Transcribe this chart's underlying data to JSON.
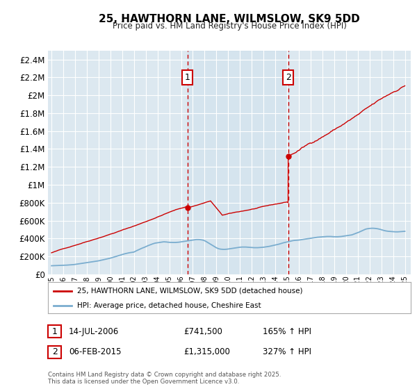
{
  "title": "25, HAWTHORN LANE, WILMSLOW, SK9 5DD",
  "subtitle": "Price paid vs. HM Land Registry's House Price Index (HPI)",
  "legend_line1": "25, HAWTHORN LANE, WILMSLOW, SK9 5DD (detached house)",
  "legend_line2": "HPI: Average price, detached house, Cheshire East",
  "sale1_date": "14-JUL-2006",
  "sale1_price": "£741,500",
  "sale1_pct": "165% ↑ HPI",
  "sale2_date": "06-FEB-2015",
  "sale2_price": "£1,315,000",
  "sale2_pct": "327% ↑ HPI",
  "copyright": "Contains HM Land Registry data © Crown copyright and database right 2025.\nThis data is licensed under the Open Government Licence v3.0.",
  "red_color": "#cc0000",
  "blue_color": "#7aadcf",
  "fig_bg": "#ffffff",
  "plot_bg": "#dce8f0",
  "grid_color": "#ffffff",
  "vline_color": "#cc0000",
  "sale1_year": 2006.54,
  "sale2_year": 2015.09,
  "ylim_max": 2500000,
  "hpi_x": [
    1995.0,
    1995.1,
    1995.2,
    1995.3,
    1995.4,
    1995.5,
    1995.6,
    1995.7,
    1995.8,
    1995.9,
    1996.0,
    1996.1,
    1996.2,
    1996.3,
    1996.4,
    1996.5,
    1996.6,
    1996.7,
    1996.8,
    1996.9,
    1997.0,
    1997.1,
    1997.2,
    1997.3,
    1997.4,
    1997.5,
    1997.6,
    1997.7,
    1997.8,
    1997.9,
    1998.0,
    1998.1,
    1998.2,
    1998.3,
    1998.4,
    1998.5,
    1998.6,
    1998.7,
    1998.8,
    1998.9,
    1999.0,
    1999.1,
    1999.2,
    1999.3,
    1999.4,
    1999.5,
    1999.6,
    1999.7,
    1999.8,
    1999.9,
    2000.0,
    2000.1,
    2000.2,
    2000.3,
    2000.4,
    2000.5,
    2000.6,
    2000.7,
    2000.8,
    2000.9,
    2001.0,
    2001.1,
    2001.2,
    2001.3,
    2001.4,
    2001.5,
    2001.6,
    2001.7,
    2001.8,
    2001.9,
    2002.0,
    2002.1,
    2002.2,
    2002.3,
    2002.4,
    2002.5,
    2002.6,
    2002.7,
    2002.8,
    2002.9,
    2003.0,
    2003.1,
    2003.2,
    2003.3,
    2003.4,
    2003.5,
    2003.6,
    2003.7,
    2003.8,
    2003.9,
    2004.0,
    2004.1,
    2004.2,
    2004.3,
    2004.4,
    2004.5,
    2004.6,
    2004.7,
    2004.8,
    2004.9,
    2005.0,
    2005.1,
    2005.2,
    2005.3,
    2005.4,
    2005.5,
    2005.6,
    2005.7,
    2005.8,
    2005.9,
    2006.0,
    2006.1,
    2006.2,
    2006.3,
    2006.4,
    2006.5,
    2006.6,
    2006.7,
    2006.8,
    2006.9,
    2007.0,
    2007.1,
    2007.2,
    2007.3,
    2007.4,
    2007.5,
    2007.6,
    2007.7,
    2007.8,
    2007.9,
    2008.0,
    2008.1,
    2008.2,
    2008.3,
    2008.4,
    2008.5,
    2008.6,
    2008.7,
    2008.8,
    2008.9,
    2009.0,
    2009.1,
    2009.2,
    2009.3,
    2009.4,
    2009.5,
    2009.6,
    2009.7,
    2009.8,
    2009.9,
    2010.0,
    2010.1,
    2010.2,
    2010.3,
    2010.4,
    2010.5,
    2010.6,
    2010.7,
    2010.8,
    2010.9,
    2011.0,
    2011.1,
    2011.2,
    2011.3,
    2011.4,
    2011.5,
    2011.6,
    2011.7,
    2011.8,
    2011.9,
    2012.0,
    2012.1,
    2012.2,
    2012.3,
    2012.4,
    2012.5,
    2012.6,
    2012.7,
    2012.8,
    2012.9,
    2013.0,
    2013.1,
    2013.2,
    2013.3,
    2013.4,
    2013.5,
    2013.6,
    2013.7,
    2013.8,
    2013.9,
    2014.0,
    2014.1,
    2014.2,
    2014.3,
    2014.4,
    2014.5,
    2014.6,
    2014.7,
    2014.8,
    2014.9,
    2015.0,
    2015.1,
    2015.2,
    2015.3,
    2015.4,
    2015.5,
    2015.6,
    2015.7,
    2015.8,
    2015.9,
    2016.0,
    2016.1,
    2016.2,
    2016.3,
    2016.4,
    2016.5,
    2016.6,
    2016.7,
    2016.8,
    2016.9,
    2017.0,
    2017.1,
    2017.2,
    2017.3,
    2017.4,
    2017.5,
    2017.6,
    2017.7,
    2017.8,
    2017.9,
    2018.0,
    2018.1,
    2018.2,
    2018.3,
    2018.4,
    2018.5,
    2018.6,
    2018.7,
    2018.8,
    2018.9,
    2019.0,
    2019.1,
    2019.2,
    2019.3,
    2019.4,
    2019.5,
    2019.6,
    2019.7,
    2019.8,
    2019.9,
    2020.0,
    2020.1,
    2020.2,
    2020.3,
    2020.4,
    2020.5,
    2020.6,
    2020.7,
    2020.8,
    2020.9,
    2021.0,
    2021.1,
    2021.2,
    2021.3,
    2021.4,
    2021.5,
    2021.6,
    2021.7,
    2021.8,
    2021.9,
    2022.0,
    2022.1,
    2022.2,
    2022.3,
    2022.4,
    2022.5,
    2022.6,
    2022.7,
    2022.8,
    2022.9,
    2023.0,
    2023.1,
    2023.2,
    2023.3,
    2023.4,
    2023.5,
    2023.6,
    2023.7,
    2023.8,
    2023.9,
    2024.0,
    2024.1,
    2024.2,
    2024.3,
    2024.4,
    2024.5,
    2024.6,
    2024.7,
    2024.8,
    2024.9,
    2025.0
  ],
  "hpi_y": [
    95000,
    95500,
    96000,
    96500,
    97000,
    97500,
    98000,
    98500,
    99000,
    99500,
    100000,
    100500,
    101000,
    102000,
    103000,
    104000,
    105000,
    106000,
    107000,
    108000,
    110000,
    112000,
    114000,
    116000,
    118000,
    120000,
    122000,
    124000,
    126000,
    128000,
    130000,
    132000,
    134000,
    136000,
    138000,
    140000,
    142000,
    144000,
    146000,
    148000,
    150000,
    153000,
    156000,
    159000,
    162000,
    165000,
    168000,
    171000,
    174000,
    177000,
    180000,
    184000,
    188000,
    192000,
    196000,
    200000,
    204000,
    208000,
    212000,
    216000,
    220000,
    224000,
    228000,
    231000,
    234000,
    237000,
    240000,
    242000,
    244000,
    246000,
    248000,
    255000,
    262000,
    268000,
    274000,
    280000,
    286000,
    292000,
    297000,
    302000,
    308000,
    314000,
    320000,
    325000,
    330000,
    335000,
    340000,
    344000,
    348000,
    350000,
    352000,
    354000,
    356000,
    358000,
    360000,
    362000,
    362000,
    361000,
    360000,
    358000,
    357000,
    356000,
    356000,
    355000,
    355000,
    355000,
    356000,
    357000,
    358000,
    360000,
    362000,
    364000,
    366000,
    368000,
    370000,
    372000,
    374000,
    376000,
    378000,
    380000,
    382000,
    384000,
    386000,
    388000,
    388000,
    388000,
    387000,
    385000,
    383000,
    380000,
    375000,
    368000,
    360000,
    352000,
    344000,
    336000,
    328000,
    320000,
    312000,
    304000,
    296000,
    290000,
    285000,
    282000,
    280000,
    279000,
    278000,
    278000,
    279000,
    280000,
    282000,
    284000,
    286000,
    288000,
    290000,
    292000,
    294000,
    296000,
    298000,
    300000,
    302000,
    303000,
    304000,
    304000,
    304000,
    304000,
    303000,
    302000,
    301000,
    300000,
    299000,
    298000,
    297000,
    297000,
    297000,
    297000,
    298000,
    299000,
    300000,
    301000,
    302000,
    304000,
    306000,
    308000,
    310000,
    312000,
    315000,
    318000,
    321000,
    324000,
    327000,
    330000,
    333000,
    336000,
    340000,
    344000,
    348000,
    352000,
    355000,
    358000,
    361000,
    364000,
    367000,
    370000,
    373000,
    376000,
    378000,
    379000,
    380000,
    381000,
    382000,
    384000,
    386000,
    388000,
    390000,
    392000,
    394000,
    396000,
    398000,
    400000,
    402000,
    404000,
    406000,
    408000,
    410000,
    412000,
    414000,
    415000,
    416000,
    417000,
    418000,
    419000,
    420000,
    421000,
    422000,
    422000,
    422000,
    422000,
    421000,
    420000,
    419000,
    419000,
    419000,
    419000,
    420000,
    421000,
    422000,
    424000,
    426000,
    428000,
    430000,
    432000,
    434000,
    436000,
    438000,
    440000,
    445000,
    450000,
    455000,
    460000,
    465000,
    470000,
    476000,
    482000,
    488000,
    494000,
    500000,
    505000,
    508000,
    510000,
    512000,
    513000,
    514000,
    514000,
    513000,
    512000,
    510000,
    508000,
    505000,
    502000,
    498000,
    494000,
    490000,
    487000,
    484000,
    482000,
    480000,
    479000,
    478000,
    477000,
    476000,
    475000,
    474000,
    474000,
    474000,
    475000,
    476000,
    477000,
    478000,
    479000,
    480000
  ],
  "xtick_labels": [
    "1995",
    "1996",
    "1997",
    "1998",
    "1999",
    "2000",
    "2001",
    "2002",
    "2003",
    "2004",
    "2005",
    "2006",
    "2007",
    "2008",
    "2009",
    "2010",
    "2011",
    "2012",
    "2013",
    "2014",
    "2015",
    "2016",
    "2017",
    "2018",
    "2019",
    "2020",
    "2021",
    "2022",
    "2023",
    "2024",
    "2025"
  ]
}
